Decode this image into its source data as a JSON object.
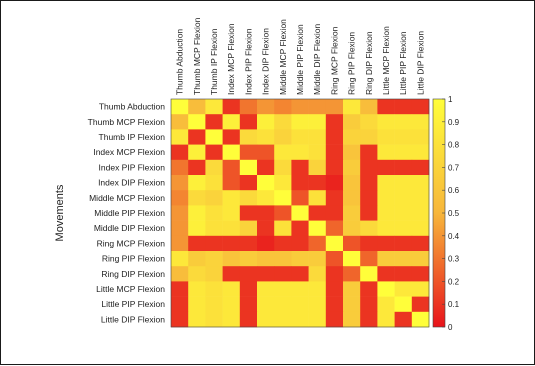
{
  "chart_data": {
    "type": "heatmap",
    "title": "",
    "ylabel": "Movements",
    "xlabel": "",
    "labels": [
      "Thumb Abduction",
      "Thumb MCP Flexion",
      "Thumb IP Flexion",
      "Index MCP Flexion",
      "Index PIP Flexion",
      "Index DIP Flexion",
      "Middle MCP Flexion",
      "Middle PIP Flexion",
      "Middle DIP Flexion",
      "Ring MCP Flexion",
      "Ring PIP Flexion",
      "Ring DIP Flexion",
      "Little MCP Flexion",
      "Little PIP Flexion",
      "Little DIP Flexion"
    ],
    "colorbar": {
      "min": 0,
      "max": 1,
      "ticks": [
        "0",
        "0.1",
        "0.2",
        "0.3",
        "0.4",
        "0.5",
        "0.6",
        "0.7",
        "0.8",
        "0.9",
        "1"
      ]
    },
    "colors": {
      "low": "#e8131b",
      "mid": "#f7b63b",
      "high": "#fffe3a"
    },
    "matrix": [
      [
        1.0,
        0.55,
        0.85,
        0.1,
        0.3,
        0.4,
        0.35,
        0.4,
        0.4,
        0.4,
        0.85,
        0.55,
        0.1,
        0.1,
        0.1
      ],
      [
        0.55,
        1.0,
        0.1,
        0.9,
        0.1,
        0.9,
        0.75,
        0.9,
        0.9,
        0.1,
        0.65,
        0.75,
        0.85,
        0.85,
        0.85
      ],
      [
        0.85,
        0.1,
        1.0,
        0.1,
        0.75,
        0.8,
        0.7,
        0.8,
        0.8,
        0.1,
        0.7,
        0.7,
        0.8,
        0.8,
        0.8
      ],
      [
        0.1,
        0.9,
        0.1,
        1.0,
        0.2,
        0.2,
        0.85,
        0.85,
        0.8,
        0.1,
        0.6,
        0.1,
        0.85,
        0.85,
        0.85
      ],
      [
        0.3,
        0.1,
        0.75,
        0.2,
        1.0,
        0.1,
        0.75,
        0.1,
        0.7,
        0.1,
        0.65,
        0.1,
        0.1,
        0.1,
        0.1
      ],
      [
        0.4,
        0.9,
        0.8,
        0.2,
        0.1,
        1.0,
        0.85,
        0.1,
        0.1,
        0.05,
        0.6,
        0.1,
        0.85,
        0.85,
        0.85
      ],
      [
        0.35,
        0.75,
        0.7,
        0.85,
        0.75,
        0.85,
        1.0,
        0.2,
        0.8,
        0.1,
        0.6,
        0.1,
        0.85,
        0.85,
        0.85
      ],
      [
        0.4,
        0.9,
        0.8,
        0.85,
        0.1,
        0.1,
        0.2,
        1.0,
        0.1,
        0.1,
        0.65,
        0.1,
        0.85,
        0.85,
        0.85
      ],
      [
        0.4,
        0.9,
        0.8,
        0.8,
        0.7,
        0.1,
        0.8,
        0.1,
        1.0,
        0.25,
        0.65,
        0.75,
        0.85,
        0.85,
        0.85
      ],
      [
        0.4,
        0.1,
        0.1,
        0.1,
        0.1,
        0.05,
        0.1,
        0.1,
        0.25,
        1.0,
        0.2,
        0.1,
        0.1,
        0.1,
        0.1
      ],
      [
        0.85,
        0.65,
        0.7,
        0.6,
        0.65,
        0.6,
        0.6,
        0.65,
        0.65,
        0.2,
        1.0,
        0.25,
        0.65,
        0.65,
        0.65
      ],
      [
        0.55,
        0.75,
        0.7,
        0.1,
        0.1,
        0.1,
        0.1,
        0.1,
        0.75,
        0.1,
        0.25,
        1.0,
        0.1,
        0.1,
        0.1
      ],
      [
        0.1,
        0.85,
        0.8,
        0.85,
        0.1,
        0.85,
        0.85,
        0.85,
        0.85,
        0.1,
        0.65,
        0.1,
        1.0,
        0.85,
        0.85
      ],
      [
        0.1,
        0.85,
        0.8,
        0.85,
        0.1,
        0.85,
        0.85,
        0.85,
        0.85,
        0.1,
        0.65,
        0.1,
        0.85,
        1.0,
        0.1
      ],
      [
        0.1,
        0.85,
        0.8,
        0.85,
        0.1,
        0.85,
        0.85,
        0.85,
        0.85,
        0.1,
        0.65,
        0.1,
        0.85,
        0.1,
        1.0
      ]
    ]
  }
}
